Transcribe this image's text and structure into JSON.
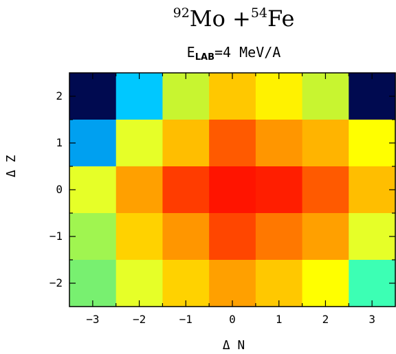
{
  "chart_data": {
    "type": "heatmap",
    "title": {
      "a": "92",
      "b": "Mo  +",
      "c": "54",
      "d": "Fe"
    },
    "subtitle": {
      "prefix": "E",
      "sub": "LAB",
      "rest": "=4 MeV/A"
    },
    "xlabel": "Δ N",
    "ylabel": "Δ Z",
    "x": [
      -3,
      -2,
      -1,
      0,
      1,
      2,
      3
    ],
    "y": [
      2,
      1,
      0,
      -1,
      -2
    ],
    "xticks": [
      "−3",
      "−2",
      "−1",
      "0",
      "1",
      "2",
      "3"
    ],
    "yticks": [
      "2",
      "1",
      "0",
      "−1",
      "−2"
    ],
    "xlim": [
      -3.5,
      3.5
    ],
    "ylim": [
      -2.5,
      2.5
    ],
    "colors": [
      [
        "#000a50",
        "#00c8ff",
        "#c8f530",
        "#ffc800",
        "#fff200",
        "#c8f530",
        "#000a50"
      ],
      [
        "#00a0f0",
        "#e6ff28",
        "#ffbe00",
        "#ff5a00",
        "#ff9600",
        "#ffb400",
        "#ffff00"
      ],
      [
        "#e6ff28",
        "#ffa000",
        "#ff3c00",
        "#ff1400",
        "#ff1e00",
        "#ff5a00",
        "#ffbe00"
      ],
      [
        "#a0f550",
        "#ffd200",
        "#ff9600",
        "#ff4600",
        "#ff7800",
        "#ffa000",
        "#e6ff28"
      ],
      [
        "#78f070",
        "#e6ff28",
        "#ffd200",
        "#ffa000",
        "#ffc800",
        "#ffff00",
        "#3cffb4"
      ]
    ]
  }
}
